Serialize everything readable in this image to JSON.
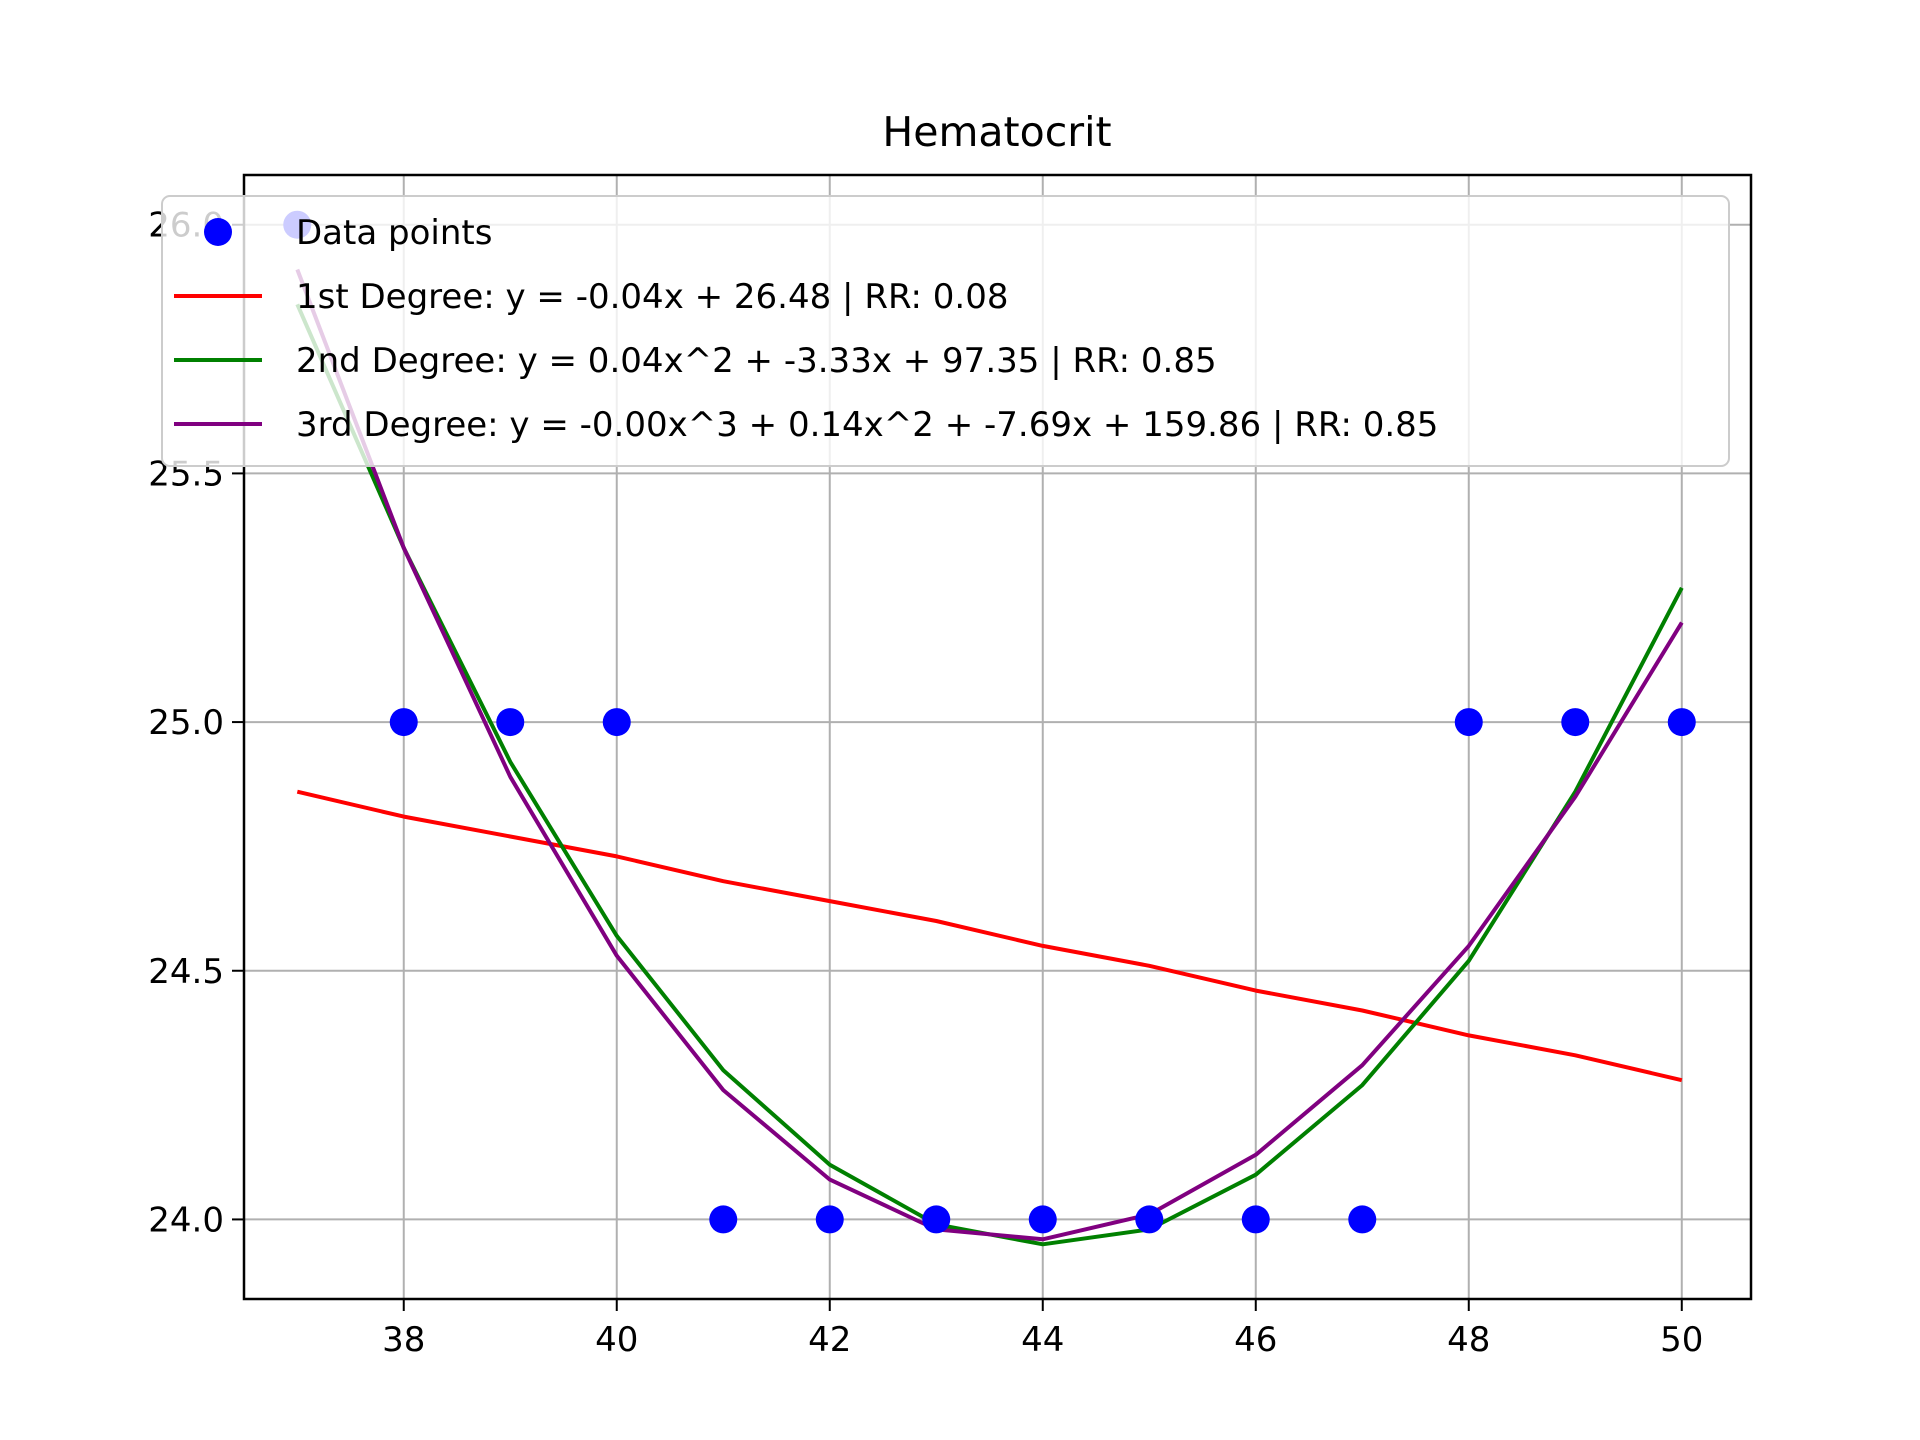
{
  "chart_data": {
    "type": "scatter",
    "title": "Hematocrit",
    "xlabel": "",
    "ylabel": "",
    "xlim": [
      36.5,
      50.65
    ],
    "ylim": [
      23.84,
      26.1
    ],
    "x_ticks": [
      38,
      40,
      42,
      44,
      46,
      48,
      50
    ],
    "y_ticks": [
      24.0,
      24.5,
      25.0,
      25.5,
      26.0
    ],
    "grid": true,
    "legend_position": "top",
    "points": {
      "name": "Data points",
      "color": "#0000ff",
      "x": [
        37,
        38,
        39,
        40,
        41,
        42,
        43,
        44,
        45,
        46,
        47,
        48,
        49,
        50
      ],
      "y": [
        26,
        25,
        25,
        25,
        24,
        24,
        24,
        24,
        24,
        24,
        24,
        25,
        25,
        25
      ]
    },
    "series": [
      {
        "name": "1st Degree: y = -0.04x + 26.48 | RR: 0.08",
        "color": "#ff0000",
        "x": [
          37,
          38,
          39,
          40,
          41,
          42,
          43,
          44,
          45,
          46,
          47,
          48,
          49,
          50
        ],
        "y": [
          24.86,
          24.81,
          24.77,
          24.73,
          24.68,
          24.64,
          24.6,
          24.55,
          24.51,
          24.46,
          24.42,
          24.37,
          24.33,
          24.28
        ]
      },
      {
        "name": "2nd Degree: y = 0.04x^2 + -3.33x + 97.35 | RR: 0.85",
        "color": "#008000",
        "x": [
          37,
          38,
          39,
          40,
          41,
          42,
          43,
          44,
          45,
          46,
          47,
          48,
          49,
          50
        ],
        "y": [
          25.84,
          25.35,
          24.92,
          24.57,
          24.3,
          24.11,
          23.99,
          23.95,
          23.98,
          24.09,
          24.27,
          24.52,
          24.86,
          25.27
        ]
      },
      {
        "name": "3rd Degree: y = -0.00x^3 + 0.14x^2 + -7.69x + 159.86 | RR: 0.85",
        "color": "#800080",
        "x": [
          37,
          38,
          39,
          40,
          41,
          42,
          43,
          44,
          45,
          46,
          47,
          48,
          49,
          50
        ],
        "y": [
          25.91,
          25.35,
          24.89,
          24.53,
          24.26,
          24.08,
          23.98,
          23.96,
          24.01,
          24.13,
          24.31,
          24.55,
          24.85,
          25.2
        ]
      }
    ]
  }
}
